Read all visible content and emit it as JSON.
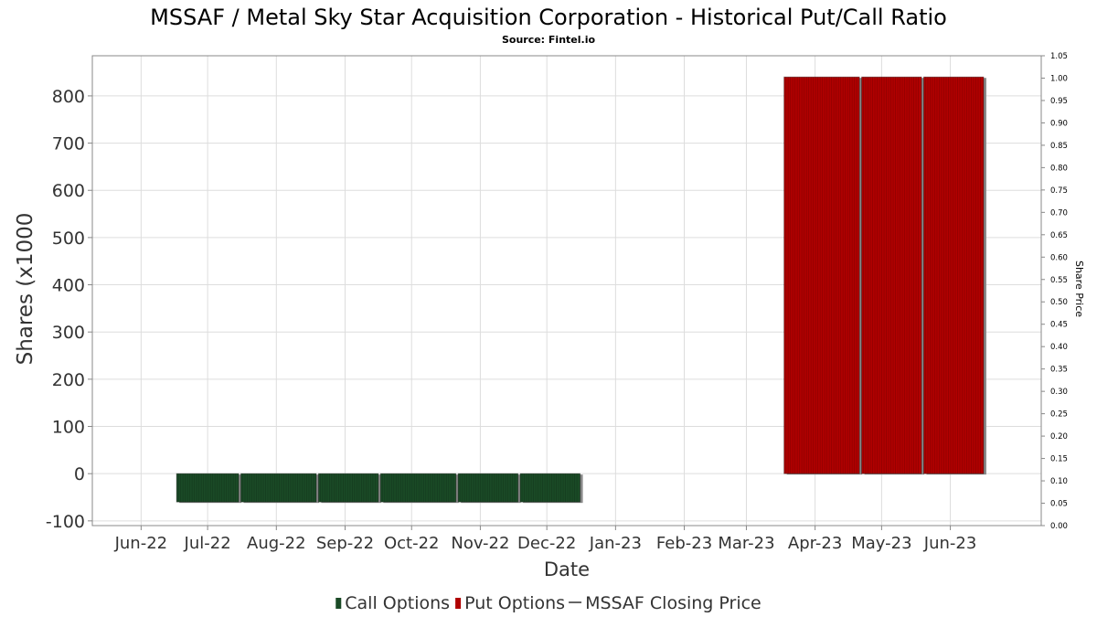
{
  "chart_data": {
    "type": "bar",
    "title": "MSSAF / Metal Sky Star Acquisition Corporation - Historical Put/Call Ratio",
    "subtitle": "Source: Fintel.io",
    "xlabel": "Date",
    "ylabel": "Shares (x1000",
    "y2label": "Share Price",
    "x_ticks": [
      "Jun-22",
      "Jul-22",
      "Aug-22",
      "Sep-22",
      "Oct-22",
      "Nov-22",
      "Dec-22",
      "Jan-23",
      "Feb-23",
      "Mar-23",
      "Apr-23",
      "May-23",
      "Jun-23"
    ],
    "y_ticks": [
      "-100",
      "0",
      "100",
      "200",
      "300",
      "400",
      "500",
      "600",
      "700",
      "800"
    ],
    "y2_ticks": [
      "0.00",
      "0.05",
      "0.10",
      "0.15",
      "0.20",
      "0.25",
      "0.30",
      "0.35",
      "0.40",
      "0.45",
      "0.50",
      "0.55",
      "0.60",
      "0.65",
      "0.70",
      "0.75",
      "0.80",
      "0.85",
      "0.90",
      "0.95",
      "1.00",
      "1.05"
    ],
    "ylim": [
      -110,
      885
    ],
    "y2lim": [
      0.0,
      1.05
    ],
    "grid": true,
    "legend_position": "bottom",
    "series": [
      {
        "name": "Call Options",
        "color": "#1a4a26",
        "bars": [
          {
            "start": "2022-06-17",
            "end": "2022-07-15",
            "value": -60
          },
          {
            "start": "2022-07-16",
            "end": "2022-08-19",
            "value": -60
          },
          {
            "start": "2022-08-20",
            "end": "2022-09-16",
            "value": -60
          },
          {
            "start": "2022-09-17",
            "end": "2022-10-21",
            "value": -60
          },
          {
            "start": "2022-10-22",
            "end": "2022-11-18",
            "value": -60
          },
          {
            "start": "2022-11-19",
            "end": "2022-12-16",
            "value": -60
          }
        ]
      },
      {
        "name": "Put Options",
        "color": "#b00000",
        "bars": [
          {
            "start": "2023-03-18",
            "end": "2023-04-21",
            "value": 840
          },
          {
            "start": "2023-04-22",
            "end": "2023-05-19",
            "value": 840
          },
          {
            "start": "2023-05-20",
            "end": "2023-06-16",
            "value": 840
          }
        ]
      },
      {
        "name": "MSSAF Closing Price",
        "color": "#333333",
        "values": []
      }
    ]
  }
}
